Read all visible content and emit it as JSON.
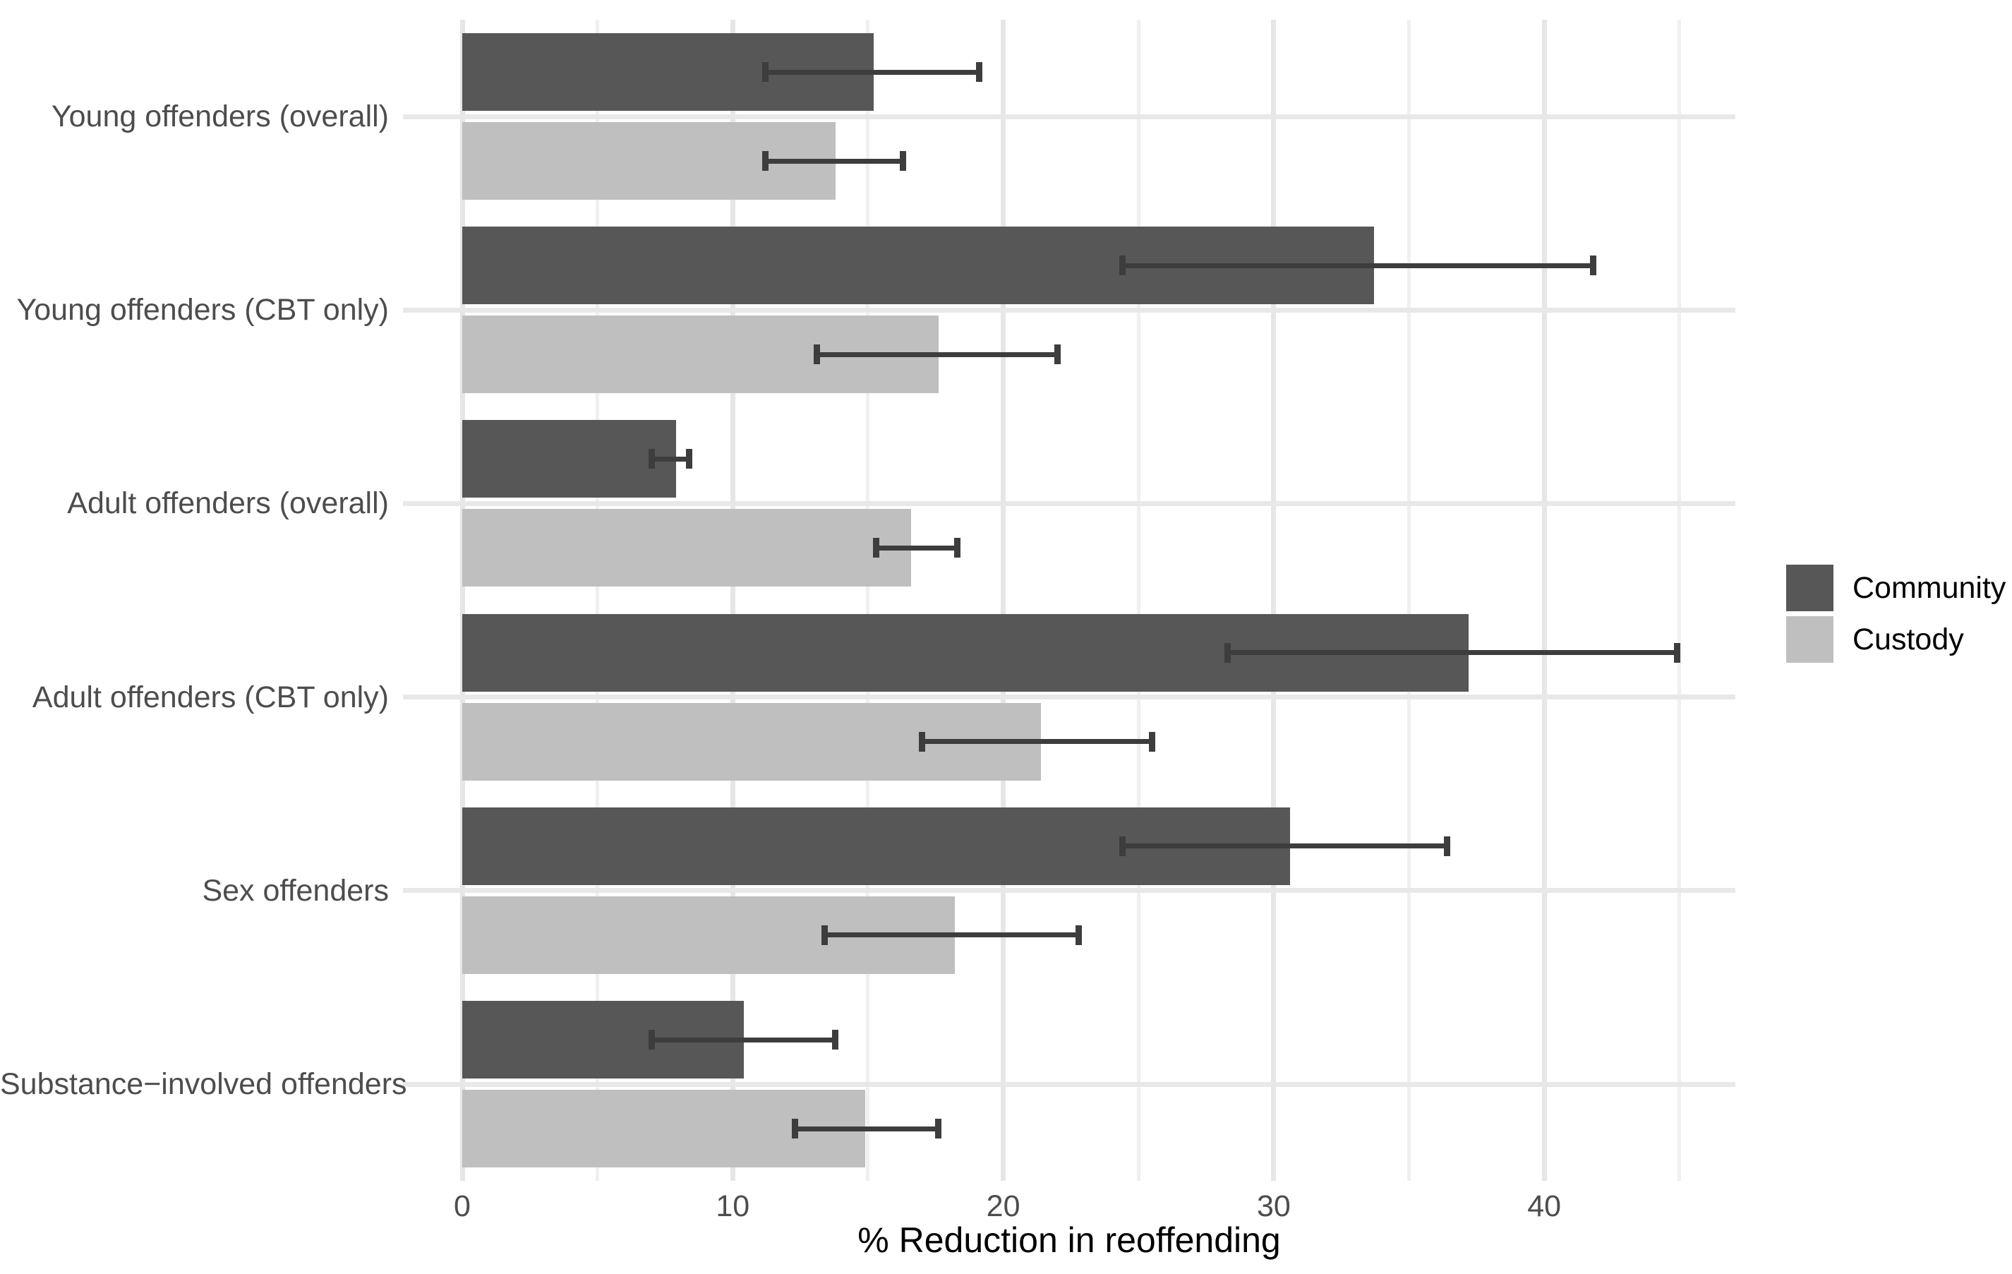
{
  "chart_data": {
    "type": "bar",
    "orientation": "horizontal",
    "title": "",
    "xlabel": "% Reduction in reoffending",
    "ylabel": "",
    "categories": [
      "Young offenders (overall)",
      "Young offenders (CBT only)",
      "Adult offenders (overall)",
      "Adult offenders (CBT only)",
      "Sex offenders",
      "Substance−involved offenders"
    ],
    "series": [
      {
        "name": "Community",
        "color": "#575757",
        "values": [
          15.2,
          33.7,
          7.9,
          37.2,
          30.6,
          10.4
        ],
        "ci_low": [
          11.2,
          24.4,
          7.0,
          28.3,
          24.4,
          7.0
        ],
        "ci_high": [
          19.1,
          41.8,
          8.4,
          44.9,
          36.4,
          13.8
        ]
      },
      {
        "name": "Custody",
        "color": "#bfbfbf",
        "values": [
          13.8,
          17.6,
          16.6,
          21.4,
          18.2,
          14.9
        ],
        "ci_low": [
          11.2,
          13.1,
          15.3,
          17.0,
          13.4,
          12.3
        ],
        "ci_high": [
          16.3,
          22.0,
          18.3,
          25.5,
          22.8,
          17.6
        ]
      }
    ],
    "x_major_ticks": [
      0,
      10,
      20,
      30,
      40
    ],
    "x_minor_ticks": [
      5,
      15,
      25,
      35,
      45
    ],
    "xlim": [
      -2.2,
      47.1
    ],
    "grid": true,
    "legend_position": "right",
    "error_bar_color": "#3d3d3d",
    "axis_text_color": "#4d4d4d",
    "background": "#ffffff"
  }
}
